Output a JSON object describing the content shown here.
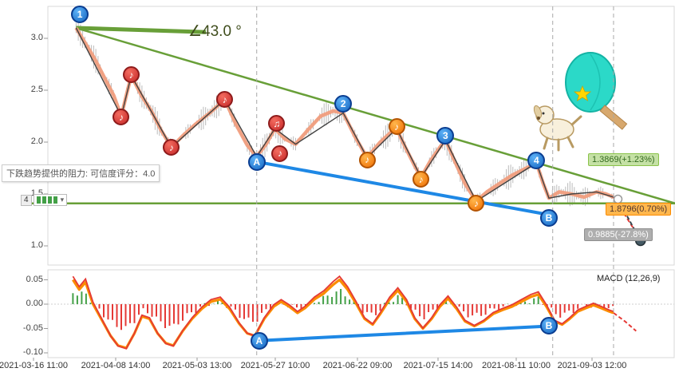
{
  "chart": {
    "angle_label": "∠43.0 °",
    "resistance_tooltip": "下跌趋势提供的阻力: 可信度评分：4.0",
    "macd_label": "MACD (12,26,9)",
    "badges": {
      "green": "1.3869(+1.23%)",
      "orange": "1.8796(0.70%)",
      "gray": "0.9885(-27.8%)"
    },
    "candles_badge": {
      "label": "4",
      "count": 4,
      "caret": "▾"
    }
  },
  "chart_data": {
    "type": "line",
    "title": "",
    "x_labels": [
      "2021-03-16 11:00",
      "2021-04-08 14:00",
      "2021-05-03 13:00",
      "2021-05-27 10:00",
      "2021-06-22 09:00",
      "2021-07-15 14:00",
      "2021-08-11 10:00",
      "2021-09-03 12:00"
    ],
    "main_y_ticks": [
      "3.0",
      "2.5",
      "2.0",
      "1.5",
      "1.0"
    ],
    "macd_y_ticks": [
      "0.05",
      "0.00",
      "-0.05",
      "-0.10"
    ],
    "main_ylim": [
      0.85,
      3.4
    ],
    "macd_ylim": [
      -0.1,
      0.05
    ],
    "price_line": [
      [
        0.045,
        3.1
      ],
      [
        0.06,
        2.95
      ],
      [
        0.075,
        2.8
      ],
      [
        0.092,
        2.6
      ],
      [
        0.105,
        2.45
      ],
      [
        0.117,
        2.25
      ],
      [
        0.125,
        2.45
      ],
      [
        0.133,
        2.64
      ],
      [
        0.15,
        2.44
      ],
      [
        0.165,
        2.3
      ],
      [
        0.18,
        2.12
      ],
      [
        0.197,
        1.95
      ],
      [
        0.215,
        2.06
      ],
      [
        0.235,
        2.17
      ],
      [
        0.258,
        2.28
      ],
      [
        0.282,
        2.41
      ],
      [
        0.3,
        2.17
      ],
      [
        0.318,
        1.97
      ],
      [
        0.333,
        1.86
      ],
      [
        0.348,
        1.98
      ],
      [
        0.362,
        2.13
      ],
      [
        0.378,
        2.03
      ],
      [
        0.395,
        1.98
      ],
      [
        0.415,
        2.12
      ],
      [
        0.435,
        2.25
      ],
      [
        0.455,
        2.3
      ],
      [
        0.471,
        2.28
      ],
      [
        0.49,
        2.05
      ],
      [
        0.509,
        1.85
      ],
      [
        0.53,
        2.0
      ],
      [
        0.548,
        2.1
      ],
      [
        0.556,
        2.13
      ],
      [
        0.57,
        1.95
      ],
      [
        0.585,
        1.77
      ],
      [
        0.595,
        1.66
      ],
      [
        0.61,
        1.82
      ],
      [
        0.625,
        1.95
      ],
      [
        0.634,
        2.02
      ],
      [
        0.65,
        1.8
      ],
      [
        0.665,
        1.6
      ],
      [
        0.683,
        1.43
      ],
      [
        0.7,
        1.52
      ],
      [
        0.72,
        1.6
      ],
      [
        0.74,
        1.68
      ],
      [
        0.76,
        1.74
      ],
      [
        0.779,
        1.8
      ],
      [
        0.79,
        1.6
      ],
      [
        0.799,
        1.46
      ],
      [
        0.815,
        1.52
      ],
      [
        0.835,
        1.5
      ],
      [
        0.855,
        1.47
      ],
      [
        0.875,
        1.52
      ],
      [
        0.89,
        1.5
      ],
      [
        0.902,
        1.47
      ]
    ],
    "pivot_line": [
      [
        0.045,
        3.1
      ],
      [
        0.117,
        2.25
      ],
      [
        0.133,
        2.64
      ],
      [
        0.197,
        1.95
      ],
      [
        0.282,
        2.41
      ],
      [
        0.333,
        1.86
      ],
      [
        0.362,
        2.13
      ],
      [
        0.395,
        1.98
      ],
      [
        0.471,
        2.28
      ],
      [
        0.509,
        1.85
      ],
      [
        0.556,
        2.13
      ],
      [
        0.595,
        1.66
      ],
      [
        0.634,
        2.02
      ],
      [
        0.683,
        1.43
      ],
      [
        0.779,
        1.8
      ],
      [
        0.799,
        1.46
      ],
      [
        0.835,
        1.5
      ],
      [
        0.875,
        1.52
      ],
      [
        0.902,
        1.47
      ]
    ],
    "price_tail": [
      [
        0.902,
        1.47
      ],
      [
        0.92,
        1.3
      ],
      [
        0.945,
        1.06
      ]
    ],
    "macd_line": [
      [
        0.04,
        0.05
      ],
      [
        0.05,
        0.03
      ],
      [
        0.06,
        0.045
      ],
      [
        0.072,
        0.0
      ],
      [
        0.085,
        -0.03
      ],
      [
        0.1,
        -0.065
      ],
      [
        0.112,
        -0.085
      ],
      [
        0.125,
        -0.09
      ],
      [
        0.138,
        -0.06
      ],
      [
        0.15,
        -0.025
      ],
      [
        0.162,
        -0.03
      ],
      [
        0.175,
        -0.06
      ],
      [
        0.188,
        -0.08
      ],
      [
        0.2,
        -0.085
      ],
      [
        0.215,
        -0.055
      ],
      [
        0.23,
        -0.03
      ],
      [
        0.245,
        -0.01
      ],
      [
        0.26,
        0.005
      ],
      [
        0.275,
        0.01
      ],
      [
        0.29,
        -0.01
      ],
      [
        0.305,
        -0.04
      ],
      [
        0.318,
        -0.06
      ],
      [
        0.33,
        -0.065
      ],
      [
        0.345,
        -0.03
      ],
      [
        0.36,
        -0.005
      ],
      [
        0.372,
        0.005
      ],
      [
        0.385,
        -0.005
      ],
      [
        0.398,
        -0.018
      ],
      [
        0.41,
        -0.008
      ],
      [
        0.425,
        0.01
      ],
      [
        0.44,
        0.022
      ],
      [
        0.455,
        0.04
      ],
      [
        0.465,
        0.05
      ],
      [
        0.478,
        0.03
      ],
      [
        0.492,
        0.0
      ],
      [
        0.505,
        -0.03
      ],
      [
        0.518,
        -0.042
      ],
      [
        0.53,
        -0.02
      ],
      [
        0.545,
        0.01
      ],
      [
        0.558,
        0.028
      ],
      [
        0.572,
        0.005
      ],
      [
        0.585,
        -0.03
      ],
      [
        0.598,
        -0.05
      ],
      [
        0.612,
        -0.03
      ],
      [
        0.625,
        -0.005
      ],
      [
        0.638,
        0.012
      ],
      [
        0.652,
        -0.01
      ],
      [
        0.665,
        -0.035
      ],
      [
        0.68,
        -0.045
      ],
      [
        0.695,
        -0.035
      ],
      [
        0.71,
        -0.02
      ],
      [
        0.725,
        -0.012
      ],
      [
        0.74,
        -0.005
      ],
      [
        0.755,
        0.005
      ],
      [
        0.77,
        0.015
      ],
      [
        0.782,
        0.02
      ],
      [
        0.795,
        -0.005
      ],
      [
        0.808,
        -0.035
      ],
      [
        0.82,
        -0.042
      ],
      [
        0.832,
        -0.03
      ],
      [
        0.845,
        -0.015
      ],
      [
        0.858,
        -0.008
      ],
      [
        0.87,
        -0.002
      ],
      [
        0.882,
        -0.008
      ],
      [
        0.895,
        -0.015
      ],
      [
        0.902,
        -0.018
      ]
    ],
    "macd_tail": [
      [
        0.902,
        -0.018
      ],
      [
        0.92,
        -0.035
      ],
      [
        0.938,
        -0.055
      ]
    ],
    "markers": [
      {
        "label": "1",
        "fx": 0.051,
        "price": 3.23
      },
      {
        "label": "2",
        "fx": 0.471,
        "price": 2.37
      },
      {
        "label": "3",
        "fx": 0.634,
        "price": 2.06
      },
      {
        "label": "4",
        "fx": 0.779,
        "price": 1.82
      },
      {
        "label": "A",
        "fx": 0.333,
        "price": 1.81
      },
      {
        "label": "B",
        "fx": 0.799,
        "price": 1.27
      }
    ],
    "macd_markers": [
      {
        "label": "A",
        "fx": 0.337,
        "value": -0.075
      },
      {
        "label": "B",
        "fx": 0.799,
        "value": -0.045
      }
    ],
    "notes": [
      {
        "fx": 0.117,
        "price": 2.24,
        "glyph": "♪",
        "color": "red"
      },
      {
        "fx": 0.133,
        "price": 2.65,
        "glyph": "♪",
        "color": "red"
      },
      {
        "fx": 0.197,
        "price": 1.95,
        "glyph": "♪",
        "color": "red"
      },
      {
        "fx": 0.282,
        "price": 2.41,
        "glyph": "♪",
        "color": "red"
      },
      {
        "fx": 0.365,
        "price": 2.18,
        "glyph": "♫",
        "color": "red"
      },
      {
        "fx": 0.37,
        "price": 1.89,
        "glyph": "♪",
        "color": "red"
      },
      {
        "fx": 0.509,
        "price": 1.83,
        "glyph": "♪",
        "color": "orange"
      },
      {
        "fx": 0.556,
        "price": 2.15,
        "glyph": "♪",
        "color": "orange"
      },
      {
        "fx": 0.595,
        "price": 1.64,
        "glyph": "♪",
        "color": "orange"
      },
      {
        "fx": 0.683,
        "price": 1.41,
        "glyph": "♪",
        "color": "orange"
      }
    ],
    "trendlines": {
      "resistance": {
        "from": [
          0.045,
          3.1
        ],
        "to": [
          1.0,
          1.41
        ]
      },
      "horizontal_support_price": 1.41,
      "angle_segment": {
        "from": [
          0.045,
          3.1
        ],
        "to": [
          0.252,
          3.06
        ]
      },
      "ab_main": {
        "from": [
          0.333,
          1.81
        ],
        "to": [
          0.799,
          1.3
        ]
      },
      "ab_macd": {
        "from": [
          0.337,
          -0.075
        ],
        "to": [
          0.799,
          -0.045
        ]
      }
    },
    "dashed_verticals_fx": [
      0.333,
      0.805,
      0.902
    ],
    "projection": {
      "start": [
        0.909,
        1.45
      ],
      "end": [
        0.945,
        1.05
      ]
    },
    "colors": {
      "trend_green": "#689f38",
      "ab_blue": "#1e88e5",
      "price_salmon": "#f19e7e",
      "pivot_dark": "#424242",
      "macd_orange": "#fb8c00",
      "macd_red": "#e53935",
      "hist_green": "#43a047",
      "hist_red": "#e53935",
      "candle_gray": "#777777",
      "projection_dark": "#37474f"
    }
  }
}
